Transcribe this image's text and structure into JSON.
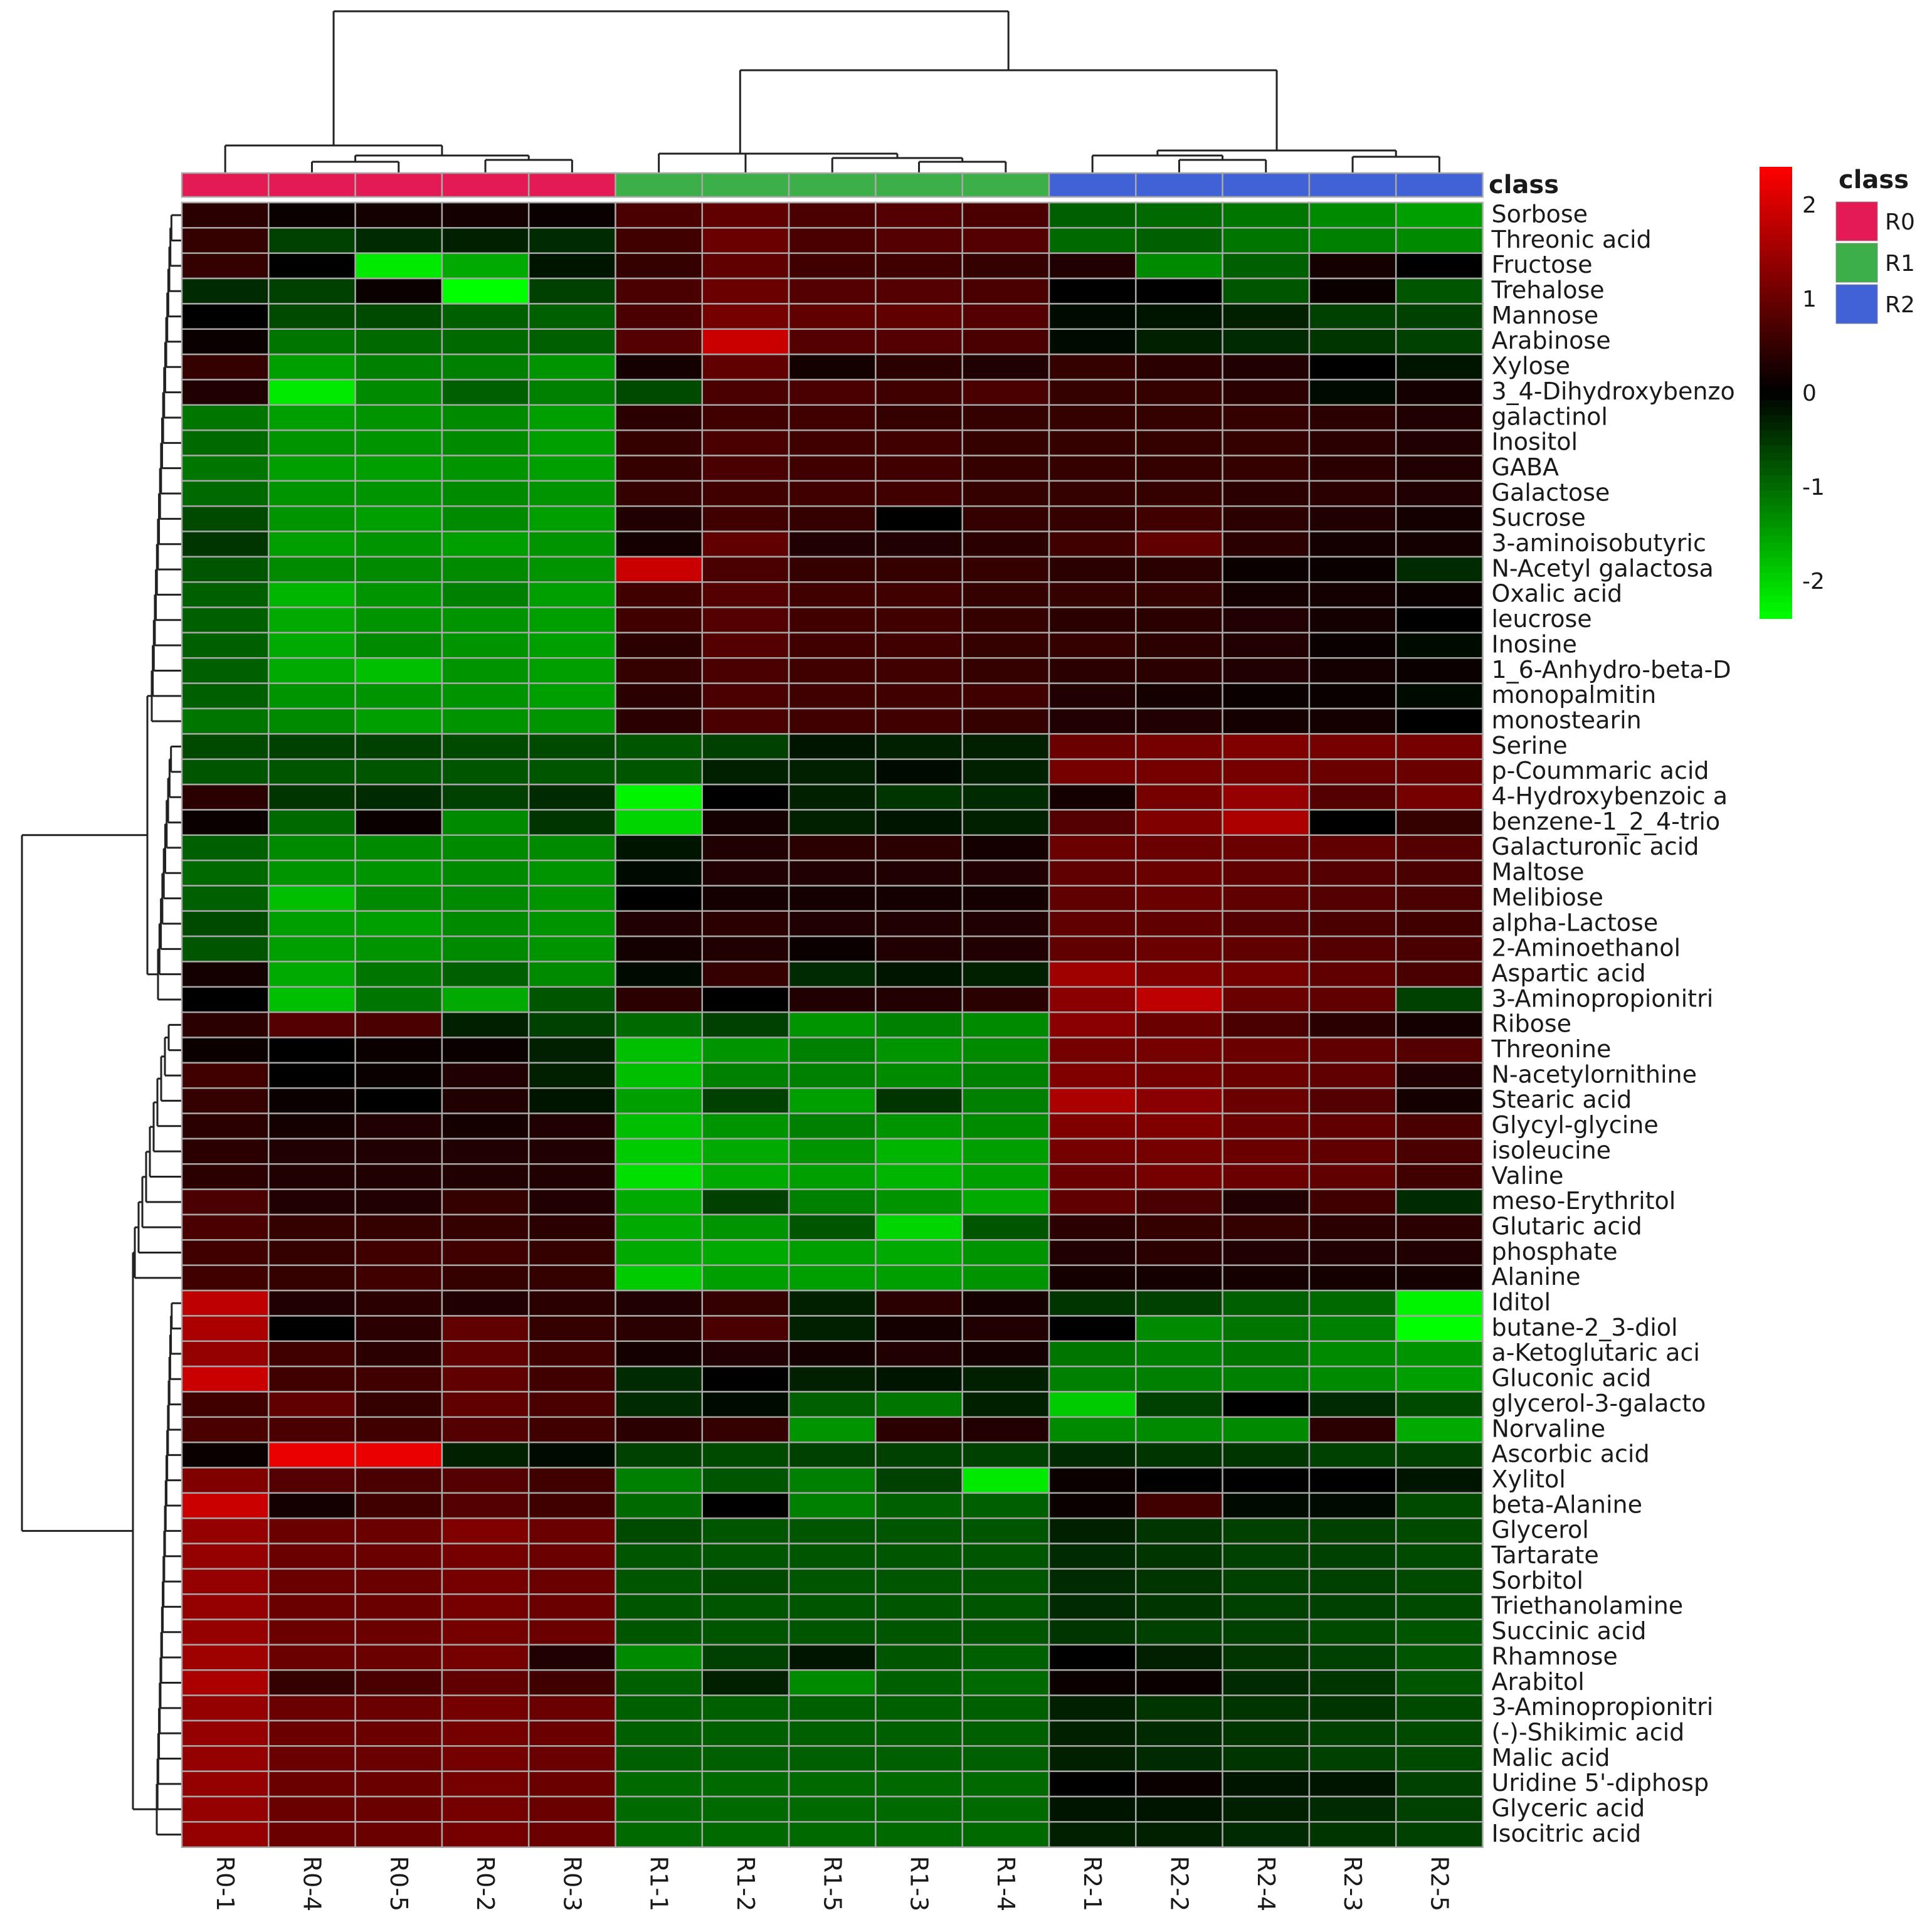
{
  "chart_data": {
    "type": "heatmap",
    "columns": [
      "R0-1",
      "R0-4",
      "R0-5",
      "R0-2",
      "R0-3",
      "R1-1",
      "R1-2",
      "R1-5",
      "R1-3",
      "R1-4",
      "R2-1",
      "R2-2",
      "R2-4",
      "R2-3",
      "R2-5"
    ],
    "column_classes": [
      "R0",
      "R0",
      "R0",
      "R0",
      "R0",
      "R1",
      "R1",
      "R1",
      "R1",
      "R1",
      "R2",
      "R2",
      "R2",
      "R2",
      "R2"
    ],
    "rows": [
      "Sorbose",
      "Threonic acid",
      "Fructose",
      "Trehalose",
      "Mannose",
      "Arabinose",
      "Xylose",
      "3_4-Dihydroxybenzo",
      "galactinol",
      "Inositol",
      "GABA",
      "Galactose",
      "Sucrose",
      "3-aminoisobutyric",
      "N-Acetyl galactosa",
      "Oxalic acid",
      "leucrose",
      "Inosine",
      "1_6-Anhydro-beta-D",
      "monopalmitin",
      "monostearin",
      "Serine",
      "p-Coummaric acid",
      "4-Hydroxybenzoic a",
      "benzene-1_2_4-trio",
      "Galacturonic acid",
      "Maltose",
      "Melibiose",
      "alpha-Lactose",
      "2-Aminoethanol",
      "Aspartic acid",
      "3-Aminopropionitri",
      "Ribose",
      "Threonine",
      "N-acetylornithine",
      "Stearic acid",
      "Glycyl-glycine",
      "isoleucine",
      "Valine",
      "meso-Erythritol",
      "Glutaric acid",
      "phosphate",
      "Alanine",
      "Iditol",
      "butane-2_3-diol",
      "a-Ketoglutaric aci",
      "Gluconic acid",
      "glycerol-3-galacto",
      "Norvaline",
      "Ascorbic acid",
      "Xylitol",
      "beta-Alanine",
      "Glycerol",
      "Tartarate",
      "Sorbitol",
      "Triethanolamine",
      "Succinic acid",
      "Rhamnose",
      "Arabitol",
      "3-Aminopropionitri",
      "(-)-Shikimic acid",
      "Malic acid",
      "Uridine 5'-diphosp",
      "Glyceric acid",
      "Isocitric acid"
    ],
    "values": [
      [
        0.4,
        0.1,
        0.2,
        0.2,
        0.1,
        0.7,
        0.9,
        0.7,
        0.8,
        0.7,
        -0.9,
        -1.0,
        -1.1,
        -1.3,
        -1.5
      ],
      [
        0.5,
        -0.6,
        -0.4,
        -0.3,
        -0.4,
        0.6,
        1.0,
        0.7,
        0.8,
        0.8,
        -1.0,
        -0.9,
        -1.1,
        -1.2,
        -1.3
      ],
      [
        0.5,
        0.0,
        -2.2,
        -1.6,
        -0.2,
        0.5,
        0.9,
        0.6,
        0.6,
        0.5,
        0.3,
        -1.3,
        -0.9,
        0.2,
        0.0
      ],
      [
        -0.4,
        -0.6,
        0.1,
        -2.5,
        -0.6,
        0.7,
        1.0,
        0.8,
        0.8,
        0.7,
        0.0,
        0.0,
        -0.8,
        0.1,
        -0.8
      ],
      [
        0.0,
        -0.7,
        -0.7,
        -0.9,
        -0.9,
        0.7,
        1.1,
        0.9,
        0.9,
        0.8,
        -0.1,
        -0.2,
        -0.3,
        -0.6,
        -0.6
      ],
      [
        0.1,
        -1.1,
        -1.0,
        -1.0,
        -0.9,
        0.8,
        1.9,
        0.8,
        0.8,
        0.7,
        -0.1,
        -0.3,
        -0.4,
        -0.5,
        -0.6
      ],
      [
        0.5,
        -1.5,
        -1.2,
        -1.2,
        -1.4,
        0.2,
        0.9,
        0.2,
        0.4,
        0.3,
        0.5,
        0.4,
        0.3,
        0.0,
        -0.2
      ],
      [
        0.3,
        -2.2,
        -1.3,
        -0.9,
        -1.2,
        -0.7,
        0.7,
        0.7,
        0.6,
        0.7,
        0.5,
        0.5,
        0.4,
        -0.1,
        0.2
      ],
      [
        -1.1,
        -1.5,
        -1.4,
        -1.3,
        -1.5,
        0.4,
        0.6,
        0.6,
        0.5,
        0.5,
        0.5,
        0.5,
        0.5,
        0.4,
        0.3
      ],
      [
        -1.0,
        -1.4,
        -1.4,
        -1.3,
        -1.5,
        0.5,
        0.7,
        0.6,
        0.6,
        0.5,
        0.5,
        0.5,
        0.5,
        0.4,
        0.3
      ],
      [
        -1.1,
        -1.5,
        -1.5,
        -1.4,
        -1.5,
        0.5,
        0.7,
        0.6,
        0.6,
        0.5,
        0.5,
        0.5,
        0.5,
        0.4,
        0.3
      ],
      [
        -1.0,
        -1.4,
        -1.4,
        -1.3,
        -1.4,
        0.5,
        0.6,
        0.6,
        0.6,
        0.5,
        0.5,
        0.5,
        0.4,
        0.4,
        0.3
      ],
      [
        -0.7,
        -1.4,
        -1.5,
        -1.3,
        -1.5,
        0.3,
        0.6,
        0.5,
        0.0,
        0.5,
        0.5,
        0.6,
        0.4,
        0.3,
        0.2
      ],
      [
        -0.5,
        -1.5,
        -1.4,
        -1.5,
        -1.4,
        0.2,
        0.9,
        0.3,
        0.3,
        0.4,
        0.6,
        0.9,
        0.4,
        0.2,
        0.2
      ],
      [
        -0.8,
        -1.3,
        -1.3,
        -1.3,
        -1.4,
        1.9,
        0.7,
        0.5,
        0.5,
        0.5,
        0.4,
        0.4,
        0.1,
        0.1,
        -0.4
      ],
      [
        -0.9,
        -1.7,
        -1.4,
        -1.2,
        -1.5,
        0.6,
        0.8,
        0.6,
        0.6,
        0.5,
        0.5,
        0.5,
        0.2,
        0.2,
        0.1
      ],
      [
        -0.9,
        -1.6,
        -1.4,
        -1.4,
        -1.5,
        0.6,
        0.8,
        0.6,
        0.6,
        0.5,
        0.4,
        0.4,
        0.3,
        0.2,
        0.0
      ],
      [
        -0.9,
        -1.6,
        -1.3,
        -1.4,
        -1.5,
        0.4,
        0.8,
        0.6,
        0.6,
        0.5,
        0.5,
        0.4,
        0.3,
        0.1,
        -0.1
      ],
      [
        -0.9,
        -1.6,
        -1.8,
        -1.4,
        -1.5,
        0.5,
        0.7,
        0.6,
        0.6,
        0.5,
        0.4,
        0.4,
        0.3,
        0.2,
        0.1
      ],
      [
        -0.9,
        -1.4,
        -1.4,
        -1.4,
        -1.5,
        0.4,
        0.7,
        0.6,
        0.6,
        0.6,
        0.3,
        0.2,
        0.1,
        0.1,
        -0.1
      ],
      [
        -1.1,
        -1.3,
        -1.5,
        -1.4,
        -1.4,
        0.4,
        0.7,
        0.6,
        0.6,
        0.5,
        0.3,
        0.3,
        0.2,
        0.2,
        0.0
      ],
      [
        -0.7,
        -0.6,
        -0.6,
        -0.7,
        -0.7,
        -0.8,
        -0.6,
        -0.2,
        -0.3,
        -0.3,
        1.0,
        1.1,
        1.2,
        1.1,
        1.1
      ],
      [
        -0.8,
        -0.8,
        -0.8,
        -0.8,
        -0.8,
        -0.8,
        -0.3,
        -0.3,
        -0.1,
        -0.3,
        1.1,
        1.1,
        1.1,
        1.0,
        1.0
      ],
      [
        0.4,
        -0.5,
        -0.4,
        -0.6,
        -0.4,
        -2.3,
        0.0,
        -0.3,
        -0.5,
        -0.4,
        0.2,
        1.1,
        1.4,
        0.8,
        1.1
      ],
      [
        0.1,
        -1.0,
        0.1,
        -1.3,
        -0.5,
        -2.0,
        0.2,
        -0.3,
        -0.2,
        -0.3,
        0.8,
        1.2,
        1.6,
        0.0,
        0.5
      ],
      [
        -0.9,
        -1.3,
        -1.3,
        -1.3,
        -1.3,
        -0.2,
        0.3,
        0.4,
        0.4,
        0.2,
        1.0,
        1.0,
        1.0,
        0.9,
        0.8
      ],
      [
        -1.0,
        -1.4,
        -1.4,
        -1.3,
        -1.4,
        -0.1,
        0.3,
        0.3,
        0.3,
        0.3,
        0.9,
        1.0,
        0.9,
        0.8,
        0.7
      ],
      [
        -0.9,
        -1.8,
        -1.3,
        -1.3,
        -1.4,
        0.0,
        0.2,
        0.2,
        0.2,
        0.2,
        0.9,
        1.0,
        0.9,
        0.8,
        0.7
      ],
      [
        -0.7,
        -1.5,
        -1.5,
        -1.3,
        -1.4,
        0.3,
        0.4,
        0.3,
        0.3,
        0.3,
        0.9,
        0.9,
        0.8,
        0.7,
        0.6
      ],
      [
        -0.8,
        -1.5,
        -1.4,
        -1.3,
        -1.4,
        0.2,
        0.3,
        0.1,
        0.3,
        0.3,
        0.9,
        1.0,
        0.9,
        0.8,
        0.7
      ],
      [
        0.2,
        -1.6,
        -1.1,
        -0.9,
        -1.3,
        -0.1,
        0.5,
        -0.4,
        -0.2,
        -0.3,
        1.5,
        1.2,
        1.1,
        0.9,
        0.7
      ],
      [
        0.0,
        -1.8,
        -1.1,
        -1.6,
        -0.8,
        0.4,
        0.0,
        0.3,
        0.3,
        0.4,
        1.3,
        1.8,
        1.0,
        0.9,
        -0.6
      ],
      [
        0.4,
        0.8,
        0.7,
        -0.3,
        -0.6,
        -1.0,
        -0.6,
        -1.4,
        -1.2,
        -1.3,
        1.3,
        1.0,
        0.7,
        0.4,
        0.2
      ],
      [
        0.1,
        0.0,
        0.1,
        0.1,
        -0.3,
        -1.8,
        -1.4,
        -1.2,
        -1.4,
        -1.3,
        1.1,
        1.1,
        1.0,
        0.9,
        0.8
      ],
      [
        0.6,
        0.0,
        0.1,
        0.3,
        -0.3,
        -1.8,
        -1.2,
        -1.2,
        -1.3,
        -1.2,
        1.2,
        1.1,
        1.0,
        0.9,
        0.3
      ],
      [
        0.5,
        0.1,
        0.0,
        0.3,
        -0.2,
        -1.5,
        -0.6,
        -1.5,
        -0.5,
        -1.2,
        1.6,
        1.3,
        1.0,
        0.8,
        0.2
      ],
      [
        0.4,
        0.2,
        0.3,
        0.2,
        0.3,
        -1.8,
        -1.4,
        -1.2,
        -1.4,
        -1.3,
        1.2,
        1.2,
        1.0,
        0.9,
        0.7
      ],
      [
        0.4,
        0.3,
        0.3,
        0.3,
        0.3,
        -1.9,
        -1.6,
        -1.4,
        -1.7,
        -1.5,
        1.1,
        1.1,
        1.0,
        0.9,
        0.7
      ],
      [
        0.4,
        0.3,
        0.3,
        0.3,
        0.3,
        -2.1,
        -1.6,
        -1.5,
        -1.7,
        -1.5,
        1.0,
        1.1,
        1.0,
        0.9,
        0.6
      ],
      [
        0.7,
        0.3,
        0.3,
        0.5,
        0.3,
        -1.6,
        -0.6,
        -1.2,
        -1.4,
        -1.6,
        0.9,
        0.7,
        0.3,
        0.6,
        -0.4
      ],
      [
        0.7,
        0.5,
        0.5,
        0.5,
        0.4,
        -1.6,
        -1.4,
        -0.8,
        -2.0,
        -0.8,
        0.4,
        0.5,
        0.5,
        0.4,
        0.4
      ],
      [
        0.6,
        0.5,
        0.6,
        0.6,
        0.5,
        -1.6,
        -1.6,
        -1.5,
        -1.6,
        -1.4,
        0.3,
        0.4,
        0.3,
        0.3,
        0.3
      ],
      [
        0.6,
        0.5,
        0.6,
        0.5,
        0.5,
        -1.9,
        -1.5,
        -1.5,
        -1.5,
        -1.4,
        0.2,
        0.2,
        0.2,
        0.2,
        0.2
      ],
      [
        1.8,
        0.3,
        0.4,
        0.3,
        0.4,
        0.3,
        0.5,
        -0.3,
        0.4,
        0.2,
        -0.5,
        -0.6,
        -0.9,
        -1.0,
        -2.3
      ],
      [
        1.6,
        0.0,
        0.4,
        0.9,
        0.5,
        0.4,
        0.7,
        -0.3,
        0.2,
        0.3,
        0.0,
        -1.3,
        -1.1,
        -1.2,
        -2.4
      ],
      [
        1.4,
        0.6,
        0.4,
        0.9,
        0.6,
        0.2,
        0.3,
        0.2,
        0.3,
        0.2,
        -1.1,
        -1.2,
        -1.1,
        -1.3,
        -1.4
      ],
      [
        1.9,
        0.6,
        0.6,
        0.9,
        0.6,
        -0.4,
        0.0,
        -0.3,
        -0.2,
        -0.3,
        -1.2,
        -1.2,
        -1.2,
        -1.3,
        -1.5
      ],
      [
        0.6,
        0.9,
        0.5,
        0.9,
        0.7,
        -0.4,
        -0.1,
        -0.9,
        -1.1,
        -0.3,
        -1.9,
        -0.6,
        0.0,
        -0.4,
        -0.7
      ],
      [
        0.7,
        0.7,
        0.6,
        0.8,
        0.6,
        0.4,
        0.5,
        -1.4,
        0.4,
        0.3,
        -1.3,
        -1.3,
        -1.3,
        0.4,
        -1.6
      ],
      [
        0.1,
        2.2,
        2.2,
        -0.3,
        -0.1,
        -0.6,
        -0.7,
        -0.6,
        -0.6,
        -0.6,
        -0.4,
        -0.5,
        -0.5,
        -0.6,
        -0.6
      ],
      [
        1.2,
        0.8,
        0.7,
        0.8,
        0.6,
        -1.2,
        -0.8,
        -1.2,
        -0.6,
        -2.2,
        0.1,
        0.0,
        0.0,
        0.0,
        -0.2
      ],
      [
        1.9,
        0.2,
        0.6,
        0.8,
        0.6,
        -1.0,
        0.0,
        -1.2,
        -0.9,
        -0.9,
        0.1,
        0.6,
        -0.1,
        -0.1,
        -0.7
      ],
      [
        1.4,
        1.0,
        1.0,
        1.2,
        1.0,
        -0.7,
        -0.8,
        -0.8,
        -0.8,
        -0.8,
        -0.3,
        -0.5,
        -0.6,
        -0.6,
        -0.7
      ],
      [
        1.4,
        1.0,
        1.0,
        1.1,
        1.0,
        -0.8,
        -0.8,
        -0.8,
        -0.8,
        -0.8,
        -0.4,
        -0.5,
        -0.6,
        -0.6,
        -0.7
      ],
      [
        1.4,
        1.0,
        1.0,
        1.1,
        1.0,
        -0.8,
        -0.7,
        -0.8,
        -0.8,
        -0.8,
        -0.4,
        -0.5,
        -0.6,
        -0.6,
        -0.7
      ],
      [
        1.4,
        1.0,
        1.0,
        1.1,
        1.0,
        -0.8,
        -0.8,
        -0.8,
        -0.8,
        -0.8,
        -0.4,
        -0.5,
        -0.6,
        -0.6,
        -0.7
      ],
      [
        1.4,
        1.0,
        1.0,
        1.1,
        1.0,
        -0.8,
        -0.8,
        -0.8,
        -0.8,
        -0.8,
        -0.5,
        -0.6,
        -0.6,
        -0.7,
        -0.8
      ],
      [
        1.5,
        1.0,
        1.0,
        1.1,
        0.3,
        -1.3,
        -0.6,
        -0.2,
        -0.8,
        -0.9,
        0.0,
        -0.3,
        -0.5,
        -0.6,
        -0.8
      ],
      [
        1.6,
        0.5,
        0.7,
        0.9,
        0.6,
        -0.9,
        -0.3,
        -1.3,
        -0.9,
        -1.0,
        0.1,
        0.1,
        -0.4,
        -0.5,
        -0.8
      ],
      [
        1.4,
        1.0,
        1.0,
        1.1,
        1.0,
        -0.9,
        -0.9,
        -0.9,
        -0.9,
        -0.9,
        -0.3,
        -0.5,
        -0.5,
        -0.5,
        -0.7
      ],
      [
        1.4,
        1.0,
        1.0,
        1.1,
        1.0,
        -0.9,
        -0.9,
        -0.9,
        -0.9,
        -0.9,
        -0.3,
        -0.4,
        -0.5,
        -0.6,
        -0.7
      ],
      [
        1.4,
        1.0,
        1.0,
        1.1,
        1.0,
        -0.9,
        -0.9,
        -0.9,
        -0.9,
        -0.9,
        -0.3,
        -0.4,
        -0.5,
        -0.6,
        -0.7
      ],
      [
        1.4,
        1.0,
        1.0,
        1.1,
        1.0,
        -1.0,
        -1.0,
        -1.0,
        -1.0,
        -1.0,
        0.0,
        0.1,
        -0.2,
        -0.2,
        -0.6
      ],
      [
        1.4,
        1.0,
        1.0,
        1.1,
        1.0,
        -1.0,
        -1.0,
        -1.0,
        -1.0,
        -1.0,
        -0.2,
        -0.2,
        -0.3,
        -0.4,
        -0.6
      ],
      [
        1.4,
        1.0,
        1.0,
        1.1,
        1.0,
        -1.0,
        -1.0,
        -1.0,
        -1.0,
        -1.0,
        -0.3,
        -0.3,
        -0.4,
        -0.5,
        -0.6
      ]
    ],
    "color_scale": {
      "min": -2.4,
      "max": 2.4,
      "low_color": "#00ff00",
      "mid_color": "#000000",
      "high_color": "#ff0000",
      "ticks": [
        2,
        1,
        0,
        -1,
        -2
      ]
    },
    "class_legend": {
      "title": "class",
      "entries": [
        {
          "name": "R0",
          "color": "#e31a53"
        },
        {
          "name": "R1",
          "color": "#3caf48"
        },
        {
          "name": "R2",
          "color": "#4161d6"
        }
      ]
    },
    "annotation_title": "class",
    "cell_border_color": "#a8a8a8"
  }
}
